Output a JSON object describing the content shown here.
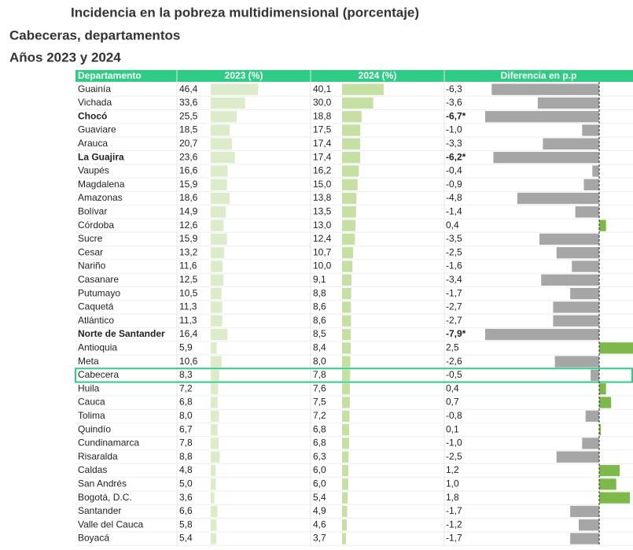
{
  "header": {
    "title": "Incidencia en la pobreza multidimensional (porcentaje)",
    "subtitle": "Cabeceras, departamentos",
    "period": "Años 2023 y 2024"
  },
  "table": {
    "columns": [
      "Departamento",
      "2023 (%)",
      "2024 (%)",
      "Diferencia en p.p"
    ],
    "rows": [
      {
        "name": "Guainía",
        "v1": 46.4,
        "l1": "46,4",
        "v2": 40.1,
        "l2": "40,1",
        "dif": -6.3,
        "difl": "-6,3"
      },
      {
        "name": "Vichada",
        "v1": 33.6,
        "l1": "33,6",
        "v2": 30.0,
        "l2": "30,0",
        "dif": -3.6,
        "difl": "-3,6"
      },
      {
        "name": "Chocó",
        "v1": 25.5,
        "l1": "25,5",
        "v2": 18.8,
        "l2": "18,8",
        "dif": -6.7,
        "difl": "-6,7*",
        "bold": true
      },
      {
        "name": "Guaviare",
        "v1": 18.5,
        "l1": "18,5",
        "v2": 17.5,
        "l2": "17,5",
        "dif": -1.0,
        "difl": "-1,0"
      },
      {
        "name": "Arauca",
        "v1": 20.7,
        "l1": "20,7",
        "v2": 17.4,
        "l2": "17,4",
        "dif": -3.3,
        "difl": "-3,3"
      },
      {
        "name": "La Guajira",
        "v1": 23.6,
        "l1": "23,6",
        "v2": 17.4,
        "l2": "17,4",
        "dif": -6.2,
        "difl": "-6,2*",
        "bold": true
      },
      {
        "name": "Vaupés",
        "v1": 16.6,
        "l1": "16,6",
        "v2": 16.2,
        "l2": "16,2",
        "dif": -0.4,
        "difl": "-0,4"
      },
      {
        "name": "Magdalena",
        "v1": 15.9,
        "l1": "15,9",
        "v2": 15.0,
        "l2": "15,0",
        "dif": -0.9,
        "difl": "-0,9"
      },
      {
        "name": "Amazonas",
        "v1": 18.6,
        "l1": "18,6",
        "v2": 13.8,
        "l2": "13,8",
        "dif": -4.8,
        "difl": "-4,8"
      },
      {
        "name": "Bolívar",
        "v1": 14.9,
        "l1": "14,9",
        "v2": 13.5,
        "l2": "13,5",
        "dif": -1.4,
        "difl": "-1,4"
      },
      {
        "name": "Córdoba",
        "v1": 12.6,
        "l1": "12,6",
        "v2": 13.0,
        "l2": "13,0",
        "dif": 0.4,
        "difl": "0,4"
      },
      {
        "name": "Sucre",
        "v1": 15.9,
        "l1": "15,9",
        "v2": 12.4,
        "l2": "12,4",
        "dif": -3.5,
        "difl": "-3,5"
      },
      {
        "name": "Cesar",
        "v1": 13.2,
        "l1": "13,2",
        "v2": 10.7,
        "l2": "10,7",
        "dif": -2.5,
        "difl": "-2,5"
      },
      {
        "name": "Nariño",
        "v1": 11.6,
        "l1": "11,6",
        "v2": 10.0,
        "l2": "10,0",
        "dif": -1.6,
        "difl": "-1,6"
      },
      {
        "name": "Casanare",
        "v1": 12.5,
        "l1": "12,5",
        "v2": 9.1,
        "l2": "9,1",
        "dif": -3.4,
        "difl": "-3,4"
      },
      {
        "name": "Putumayo",
        "v1": 10.5,
        "l1": "10,5",
        "v2": 8.8,
        "l2": "8,8",
        "dif": -1.7,
        "difl": "-1,7"
      },
      {
        "name": "Caquetá",
        "v1": 11.3,
        "l1": "11,3",
        "v2": 8.6,
        "l2": "8,6",
        "dif": -2.7,
        "difl": "-2,7"
      },
      {
        "name": "Atlántico",
        "v1": 11.3,
        "l1": "11,3",
        "v2": 8.6,
        "l2": "8,6",
        "dif": -2.7,
        "difl": "-2,7"
      },
      {
        "name": "Norte de Santander",
        "v1": 16.4,
        "l1": "16,4",
        "v2": 8.5,
        "l2": "8,5",
        "dif": -7.9,
        "difl": "-7,9*",
        "bold": true
      },
      {
        "name": "Antioquia",
        "v1": 5.9,
        "l1": "5,9",
        "v2": 8.4,
        "l2": "8,4",
        "dif": 2.5,
        "difl": "2,5"
      },
      {
        "name": "Meta",
        "v1": 10.6,
        "l1": "10,6",
        "v2": 8.0,
        "l2": "8,0",
        "dif": -2.6,
        "difl": "-2,6"
      },
      {
        "name": "Cabecera",
        "v1": 8.3,
        "l1": "8,3",
        "v2": 7.8,
        "l2": "7,8",
        "dif": -0.5,
        "difl": "-0,5",
        "highlight": true
      },
      {
        "name": "Huila",
        "v1": 7.2,
        "l1": "7,2",
        "v2": 7.6,
        "l2": "7,6",
        "dif": 0.4,
        "difl": "0,4"
      },
      {
        "name": "Cauca",
        "v1": 6.8,
        "l1": "6,8",
        "v2": 7.5,
        "l2": "7,5",
        "dif": 0.7,
        "difl": "0,7"
      },
      {
        "name": "Tolima",
        "v1": 8.0,
        "l1": "8,0",
        "v2": 7.2,
        "l2": "7,2",
        "dif": -0.8,
        "difl": "-0,8"
      },
      {
        "name": "Quindío",
        "v1": 6.7,
        "l1": "6,7",
        "v2": 6.8,
        "l2": "6,8",
        "dif": 0.1,
        "difl": "0,1"
      },
      {
        "name": "Cundinamarca",
        "v1": 7.8,
        "l1": "7,8",
        "v2": 6.8,
        "l2": "6,8",
        "dif": -1.0,
        "difl": "-1,0"
      },
      {
        "name": "Risaralda",
        "v1": 8.8,
        "l1": "8,8",
        "v2": 6.3,
        "l2": "6,3",
        "dif": -2.5,
        "difl": "-2,5"
      },
      {
        "name": "Caldas",
        "v1": 4.8,
        "l1": "4,8",
        "v2": 6.0,
        "l2": "6,0",
        "dif": 1.2,
        "difl": "1,2"
      },
      {
        "name": "San Andrés",
        "v1": 5.0,
        "l1": "5,0",
        "v2": 6.0,
        "l2": "6,0",
        "dif": 1.0,
        "difl": "1,0"
      },
      {
        "name": "Bogotá, D.C.",
        "v1": 3.6,
        "l1": "3,6",
        "v2": 5.4,
        "l2": "5,4",
        "dif": 1.8,
        "difl": "1,8"
      },
      {
        "name": "Santander",
        "v1": 6.6,
        "l1": "6,6",
        "v2": 4.9,
        "l2": "4,9",
        "dif": -1.7,
        "difl": "-1,7"
      },
      {
        "name": "Valle del Cauca",
        "v1": 5.8,
        "l1": "5,8",
        "v2": 4.6,
        "l2": "4,6",
        "dif": -1.2,
        "difl": "-1,2"
      },
      {
        "name": "Boyacá",
        "v1": 5.4,
        "l1": "5,4",
        "v2": 3.7,
        "l2": "3,7",
        "dif": -1.7,
        "difl": "-1,7"
      }
    ]
  }
}
